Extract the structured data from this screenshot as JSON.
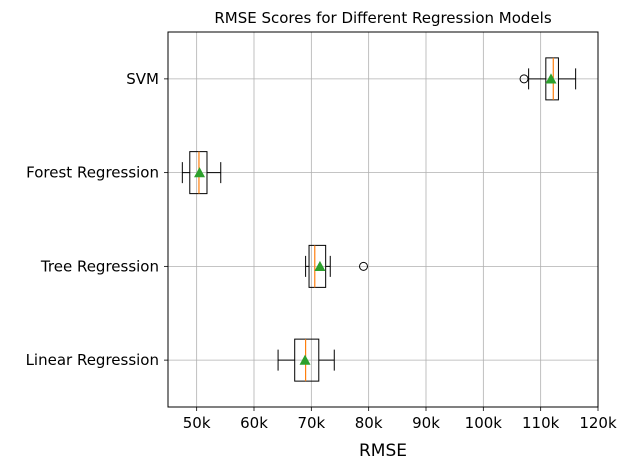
{
  "chart_data": {
    "type": "boxplot",
    "orientation": "horizontal",
    "title": "RMSE Scores for Different Regression Models",
    "xlabel": "RMSE",
    "ylabel": "",
    "xlim": [
      45000,
      120000
    ],
    "xticks": [
      50000,
      60000,
      70000,
      80000,
      90000,
      100000,
      110000,
      120000
    ],
    "xtick_labels": [
      "50k",
      "60k",
      "70k",
      "80k",
      "90k",
      "100k",
      "110k",
      "120k"
    ],
    "grid": true,
    "categories": [
      "Linear Regression",
      "Tree Regression",
      "Forest Regression",
      "SVM"
    ],
    "boxes": [
      {
        "label": "Linear Regression",
        "whisker_low": 64200,
        "q1": 67100,
        "median": 69000,
        "q3": 71300,
        "whisker_high": 74000,
        "mean": 68900,
        "outliers": []
      },
      {
        "label": "Tree Regression",
        "whisker_low": 69000,
        "q1": 69600,
        "median": 70600,
        "q3": 72500,
        "whisker_high": 73300,
        "mean": 71500,
        "outliers": [
          79100
        ]
      },
      {
        "label": "Forest Regression",
        "whisker_low": 47500,
        "q1": 48800,
        "median": 50400,
        "q3": 51800,
        "whisker_high": 54200,
        "mean": 50500,
        "outliers": []
      },
      {
        "label": "SVM",
        "whisker_low": 107900,
        "q1": 110900,
        "median": 112200,
        "q3": 113100,
        "whisker_high": 116100,
        "mean": 111800,
        "outliers": [
          107100
        ]
      }
    ],
    "colors": {
      "median": "#ff7f0e",
      "mean": "#2ca02c",
      "box": "#000000",
      "grid": "#b0b0b0"
    }
  }
}
